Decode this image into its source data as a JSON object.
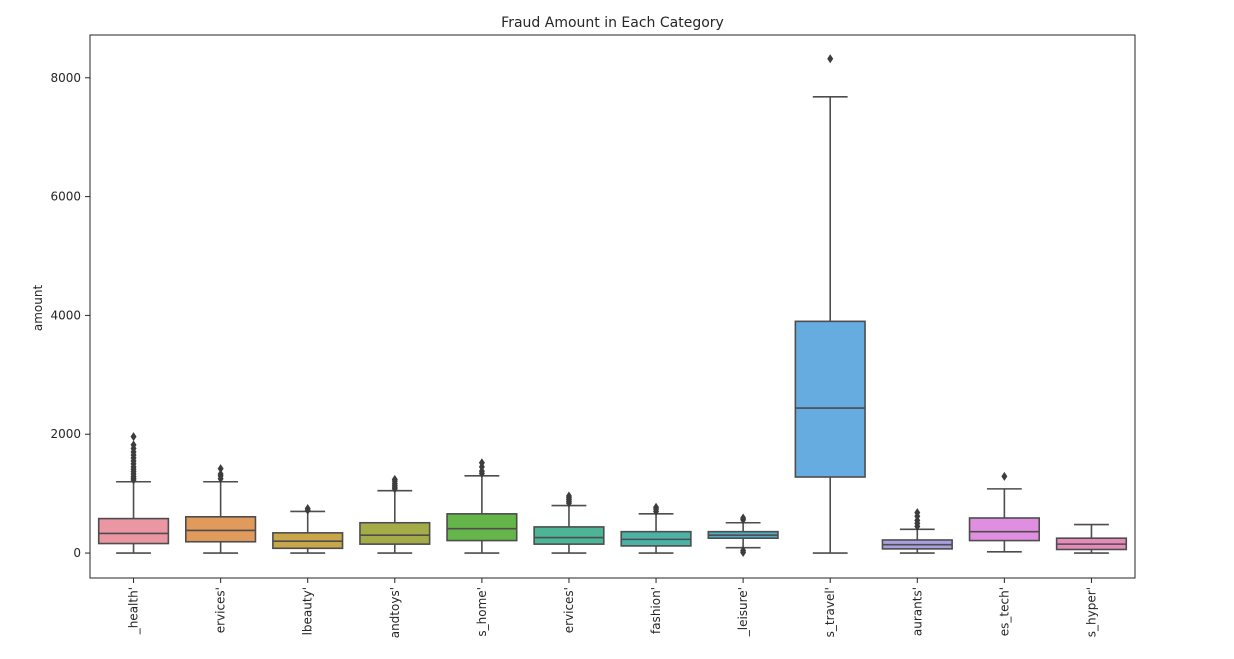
{
  "chart_data": {
    "type": "box",
    "title": "Fraud Amount in Each Category",
    "xlabel": "",
    "ylabel": "amount",
    "ylim": [
      -420,
      8720
    ],
    "yticks": [
      0,
      2000,
      4000,
      6000,
      8000
    ],
    "yticklabels": [
      "0",
      "2000",
      "4000",
      "6000",
      "8000"
    ],
    "grid": false,
    "categories": [
      "_health'",
      "ervices'",
      "lbeauty'",
      "andtoys'",
      "s_home'",
      "ervices'",
      "fashion'",
      "_leisure'",
      "s_travel'",
      "aurants'",
      "es_tech'",
      "s_hyper'"
    ],
    "boxes": [
      {
        "color": "#ea96a3",
        "whisker_low": 0,
        "q1": 160,
        "median": 330,
        "q3": 580,
        "whisker_high": 1200,
        "outliers": [
          1230,
          1260,
          1290,
          1330,
          1370,
          1410,
          1450,
          1500,
          1550,
          1600,
          1650,
          1700,
          1760,
          1820,
          1960
        ]
      },
      {
        "color": "#e09a5c",
        "whisker_low": 0,
        "q1": 190,
        "median": 380,
        "q3": 610,
        "whisker_high": 1200,
        "outliers": [
          1250,
          1300,
          1330,
          1420
        ]
      },
      {
        "color": "#c8a74a",
        "whisker_low": 0,
        "q1": 80,
        "median": 200,
        "q3": 340,
        "whisker_high": 700,
        "outliers": [
          720,
          750
        ]
      },
      {
        "color": "#a4ac48",
        "whisker_low": 0,
        "q1": 150,
        "median": 300,
        "q3": 510,
        "whisker_high": 1050,
        "outliers": [
          1080,
          1110,
          1140,
          1170,
          1210,
          1240
        ]
      },
      {
        "color": "#64b54a",
        "whisker_low": 0,
        "q1": 210,
        "median": 410,
        "q3": 660,
        "whisker_high": 1300,
        "outliers": [
          1340,
          1380,
          1450,
          1520
        ]
      },
      {
        "color": "#4bb595",
        "whisker_low": 0,
        "q1": 150,
        "median": 260,
        "q3": 440,
        "whisker_high": 800,
        "outliers": [
          840,
          870,
          900,
          930,
          960
        ]
      },
      {
        "color": "#4db2a6",
        "whisker_low": 0,
        "q1": 120,
        "median": 230,
        "q3": 360,
        "whisker_high": 660,
        "outliers": [
          700,
          740,
          770
        ]
      },
      {
        "color": "#4facc4",
        "whisker_low": 90,
        "q1": 250,
        "median": 300,
        "q3": 360,
        "whisker_high": 510,
        "outliers": [
          10,
          40,
          560,
          590
        ]
      },
      {
        "color": "#66ace0",
        "whisker_low": 0,
        "q1": 1280,
        "median": 2440,
        "q3": 3900,
        "whisker_high": 7680,
        "outliers": [
          8320
        ]
      },
      {
        "color": "#ac9fe0",
        "whisker_low": 0,
        "q1": 70,
        "median": 140,
        "q3": 220,
        "whisker_high": 400,
        "outliers": [
          450,
          500,
          550,
          620,
          680
        ]
      },
      {
        "color": "#e08fe0",
        "whisker_low": 20,
        "q1": 210,
        "median": 360,
        "q3": 590,
        "whisker_high": 1080,
        "outliers": [
          1290
        ]
      },
      {
        "color": "#e58ab9",
        "whisker_low": 0,
        "q1": 60,
        "median": 150,
        "q3": 250,
        "whisker_high": 480,
        "outliers": []
      }
    ]
  }
}
